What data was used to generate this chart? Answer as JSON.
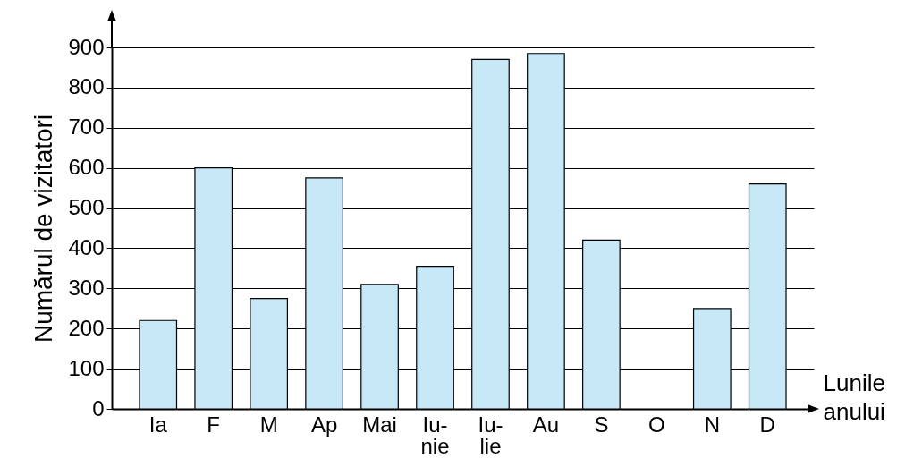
{
  "chart_data": {
    "type": "bar",
    "xlabel": "Lunile anului",
    "ylabel": "Numărul de vizitatori",
    "categories": [
      "Ia",
      "F",
      "M",
      "Ap",
      "Mai",
      "Iu-\nnie",
      "Iu-\nlie",
      "Au",
      "S",
      "O",
      "N",
      "D"
    ],
    "values": [
      220,
      600,
      275,
      575,
      310,
      355,
      870,
      885,
      420,
      null,
      250,
      560
    ],
    "color": "#c6e8f7",
    "ylim": [
      0,
      900
    ],
    "yticks": [
      0,
      100,
      200,
      300,
      400,
      500,
      600,
      700,
      800,
      900
    ],
    "grid": "y"
  }
}
